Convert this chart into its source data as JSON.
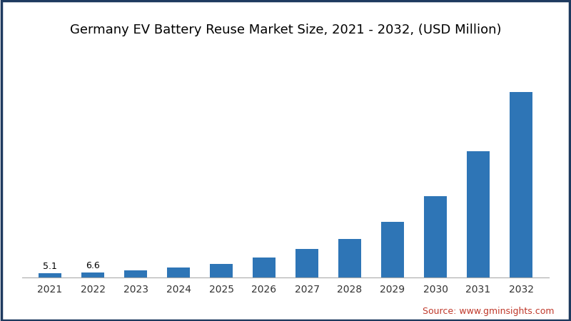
{
  "title": "Germany EV Battery Reuse Market Size, 2021 - 2032, (USD Million)",
  "categories": [
    "2021",
    "2022",
    "2023",
    "2024",
    "2025",
    "2026",
    "2027",
    "2028",
    "2029",
    "2030",
    "2031",
    "2032"
  ],
  "values": [
    5.1,
    6.6,
    9.5,
    13.0,
    18.0,
    27.0,
    38.0,
    52.0,
    75.0,
    110.0,
    170.0,
    250.0
  ],
  "bar_color": "#2e75b6",
  "label_values": [
    "5.1",
    "6.6"
  ],
  "label_indices": [
    0,
    1
  ],
  "background_color": "#ffffff",
  "border_color": "#1e3a5f",
  "source_text": "Source: www.gminsights.com",
  "source_color": "#c0392b",
  "title_fontsize": 13,
  "label_fontsize": 9,
  "tick_fontsize": 10,
  "source_fontsize": 9,
  "bar_width": 0.52
}
